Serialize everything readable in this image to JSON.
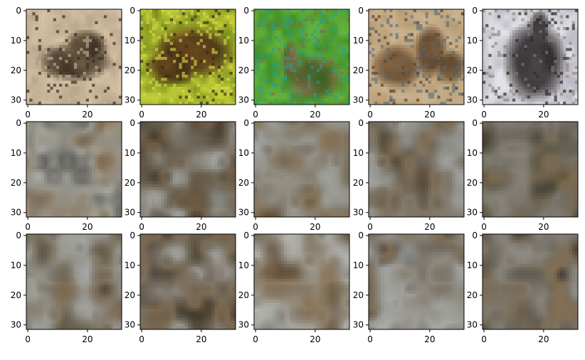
{
  "figure": {
    "rows": 3,
    "cols": 5,
    "background": "#ffffff",
    "frame_color": "#000000"
  },
  "chart_data": {
    "type": "heatmap",
    "description_kind": "image_grid",
    "pixel_grid": [
      32,
      32
    ],
    "xlim": [
      -0.5,
      31.5
    ],
    "ylim": [
      31.5,
      -0.5
    ],
    "xticks": [
      0,
      20
    ],
    "yticks": [
      0,
      10,
      20,
      30
    ],
    "xtick_labels": [
      "0",
      "20"
    ],
    "ytick_labels": [
      "0",
      "10",
      "20",
      "30"
    ],
    "panels": [
      {
        "row": 0,
        "col": 0,
        "kind": "photo",
        "subject": "moth-on-sand",
        "palette": [
          "#d8c4a8",
          "#b8a58a",
          "#6b5a44",
          "#3a2e22",
          "#c9b79e"
        ],
        "seed": 11
      },
      {
        "row": 0,
        "col": 1,
        "kind": "photo",
        "subject": "butterfly-on-leaf",
        "palette": [
          "#c8d43a",
          "#7a8f1c",
          "#6b4a1e",
          "#3b2a12",
          "#e4dc4a"
        ],
        "seed": 23
      },
      {
        "row": 0,
        "col": 2,
        "kind": "photo",
        "subject": "deer-on-grass",
        "palette": [
          "#3f8f2a",
          "#67b33c",
          "#2c5f1c",
          "#8a6a4a",
          "#1aa0a0"
        ],
        "seed": 37
      },
      {
        "row": 0,
        "col": 3,
        "kind": "photo",
        "subject": "camels-on-sand",
        "palette": [
          "#cdb592",
          "#b69a72",
          "#8f6d44",
          "#5a4430",
          "#4f6a7a"
        ],
        "seed": 41
      },
      {
        "row": 0,
        "col": 4,
        "kind": "photo",
        "subject": "llama-head",
        "palette": [
          "#e6e6ea",
          "#b9b8c2",
          "#4a4648",
          "#2c2a2c",
          "#8a7c72"
        ],
        "seed": 53
      },
      {
        "row": 1,
        "col": 0,
        "kind": "blur",
        "palette": [
          "#a7a9a3",
          "#6b5a45",
          "#8f7a5c",
          "#3e3a33",
          "#c3c7c6"
        ],
        "seed": 61
      },
      {
        "row": 1,
        "col": 1,
        "kind": "blur",
        "palette": [
          "#7f7a6e",
          "#3d3629",
          "#8e7455",
          "#b9bcba",
          "#24211c"
        ],
        "seed": 67
      },
      {
        "row": 1,
        "col": 2,
        "kind": "blur",
        "palette": [
          "#8e8b80",
          "#5a4a37",
          "#a58a66",
          "#aeb2b1",
          "#3a342c"
        ],
        "seed": 71
      },
      {
        "row": 1,
        "col": 3,
        "kind": "blur",
        "palette": [
          "#8b8a83",
          "#4f4536",
          "#9a8363",
          "#b5b8b6",
          "#35302a"
        ],
        "seed": 79
      },
      {
        "row": 1,
        "col": 4,
        "kind": "blur",
        "palette": [
          "#6f6b60",
          "#2c2923",
          "#a68a60",
          "#97938b",
          "#4a4033"
        ],
        "seed": 83
      },
      {
        "row": 2,
        "col": 0,
        "kind": "blur",
        "palette": [
          "#8d8a80",
          "#4b4234",
          "#9e8663",
          "#b4b8b7",
          "#2f2b25"
        ],
        "seed": 89
      },
      {
        "row": 2,
        "col": 1,
        "kind": "blur",
        "palette": [
          "#807b70",
          "#3e372b",
          "#a08563",
          "#c2c4c1",
          "#29251f"
        ],
        "seed": 97
      },
      {
        "row": 2,
        "col": 2,
        "kind": "blur",
        "palette": [
          "#9a978e",
          "#5b4c39",
          "#ab8f6a",
          "#c7cac8",
          "#3d372f"
        ],
        "seed": 101
      },
      {
        "row": 2,
        "col": 3,
        "kind": "blur",
        "palette": [
          "#8e8b84",
          "#4d4436",
          "#9b8464",
          "#b8bbb9",
          "#2a2622"
        ],
        "seed": 103
      },
      {
        "row": 2,
        "col": 4,
        "kind": "blur",
        "palette": [
          "#77736a",
          "#35312a",
          "#ad9068",
          "#a3a098",
          "#463d31"
        ],
        "seed": 107
      }
    ]
  }
}
